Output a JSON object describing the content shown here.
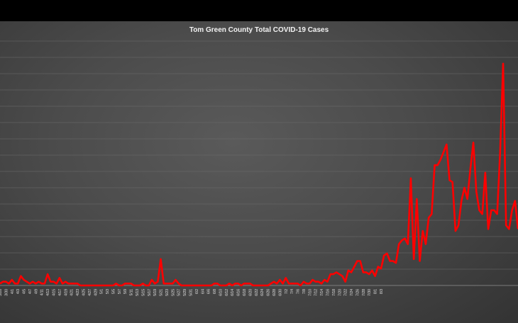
{
  "chart_data": {
    "type": "line",
    "title": "Tom Green County Total COVID-19 Cases",
    "xlabel": "",
    "ylabel": "",
    "grid": true,
    "legend": "none",
    "x_tick_labels": [
      "3/28",
      "3/30",
      "4/1",
      "4/3",
      "4/5",
      "4/7",
      "4/9",
      "4/11",
      "4/13",
      "4/15",
      "4/17",
      "4/19",
      "4/21",
      "4/23",
      "4/25",
      "4/27",
      "4/29",
      "5/1",
      "5/3",
      "5/5",
      "5/7",
      "5/9",
      "5/11",
      "5/13",
      "5/15",
      "5/17",
      "5/19",
      "5/21",
      "5/23",
      "5/25",
      "5/27",
      "5/29",
      "5/31",
      "6/2",
      "6/4",
      "6/6",
      "6/8",
      "6/10",
      "6/12",
      "6/14",
      "6/16",
      "6/18",
      "6/20",
      "6/22",
      "6/24",
      "6/26",
      "6/28",
      "6/30",
      "7/2",
      "7/4",
      "7/6",
      "7/8",
      "7/10",
      "7/12",
      "7/14",
      "7/16",
      "7/18",
      "7/20",
      "7/22",
      "7/24",
      "7/26",
      "7/28",
      "7/30",
      "8/1",
      "8/3"
    ],
    "series": [
      {
        "color": "#ff0000",
        "values": [
          1,
          2,
          2,
          1,
          3,
          1,
          1,
          5,
          3,
          2,
          1,
          2,
          1,
          2,
          1,
          1,
          6,
          2,
          2,
          1,
          4,
          1,
          2,
          1,
          1,
          1,
          1,
          0,
          0,
          0,
          0,
          0,
          0,
          0,
          0,
          0,
          0,
          0,
          0,
          1,
          0,
          0,
          1,
          1,
          1,
          0,
          0,
          0,
          1,
          0,
          0,
          3,
          1,
          2,
          14,
          1,
          1,
          1,
          1,
          3,
          1,
          0,
          0,
          0,
          0,
          0,
          0,
          0,
          0,
          0,
          0,
          0,
          1,
          1,
          0,
          0,
          0,
          1,
          0,
          1,
          1,
          0,
          1,
          1,
          1,
          0,
          0,
          0,
          0,
          0,
          0,
          1,
          2,
          1,
          3,
          1,
          4,
          1,
          1,
          1,
          1,
          0,
          2,
          1,
          1,
          3,
          2,
          2,
          1,
          3,
          2,
          6,
          6,
          7,
          6,
          5,
          2,
          8,
          7,
          10,
          13,
          13,
          7,
          7,
          6,
          8,
          5,
          10,
          9,
          16,
          17,
          13,
          13,
          12,
          22,
          24,
          25,
          22,
          57,
          14,
          46,
          13,
          29,
          22,
          36,
          38,
          64,
          64,
          67,
          71,
          75,
          56,
          55,
          29,
          32,
          45,
          52,
          46,
          62,
          76,
          50,
          40,
          38,
          60,
          30,
          40,
          40,
          38,
          71,
          118,
          32,
          30,
          40,
          45,
          30
        ]
      }
    ]
  }
}
